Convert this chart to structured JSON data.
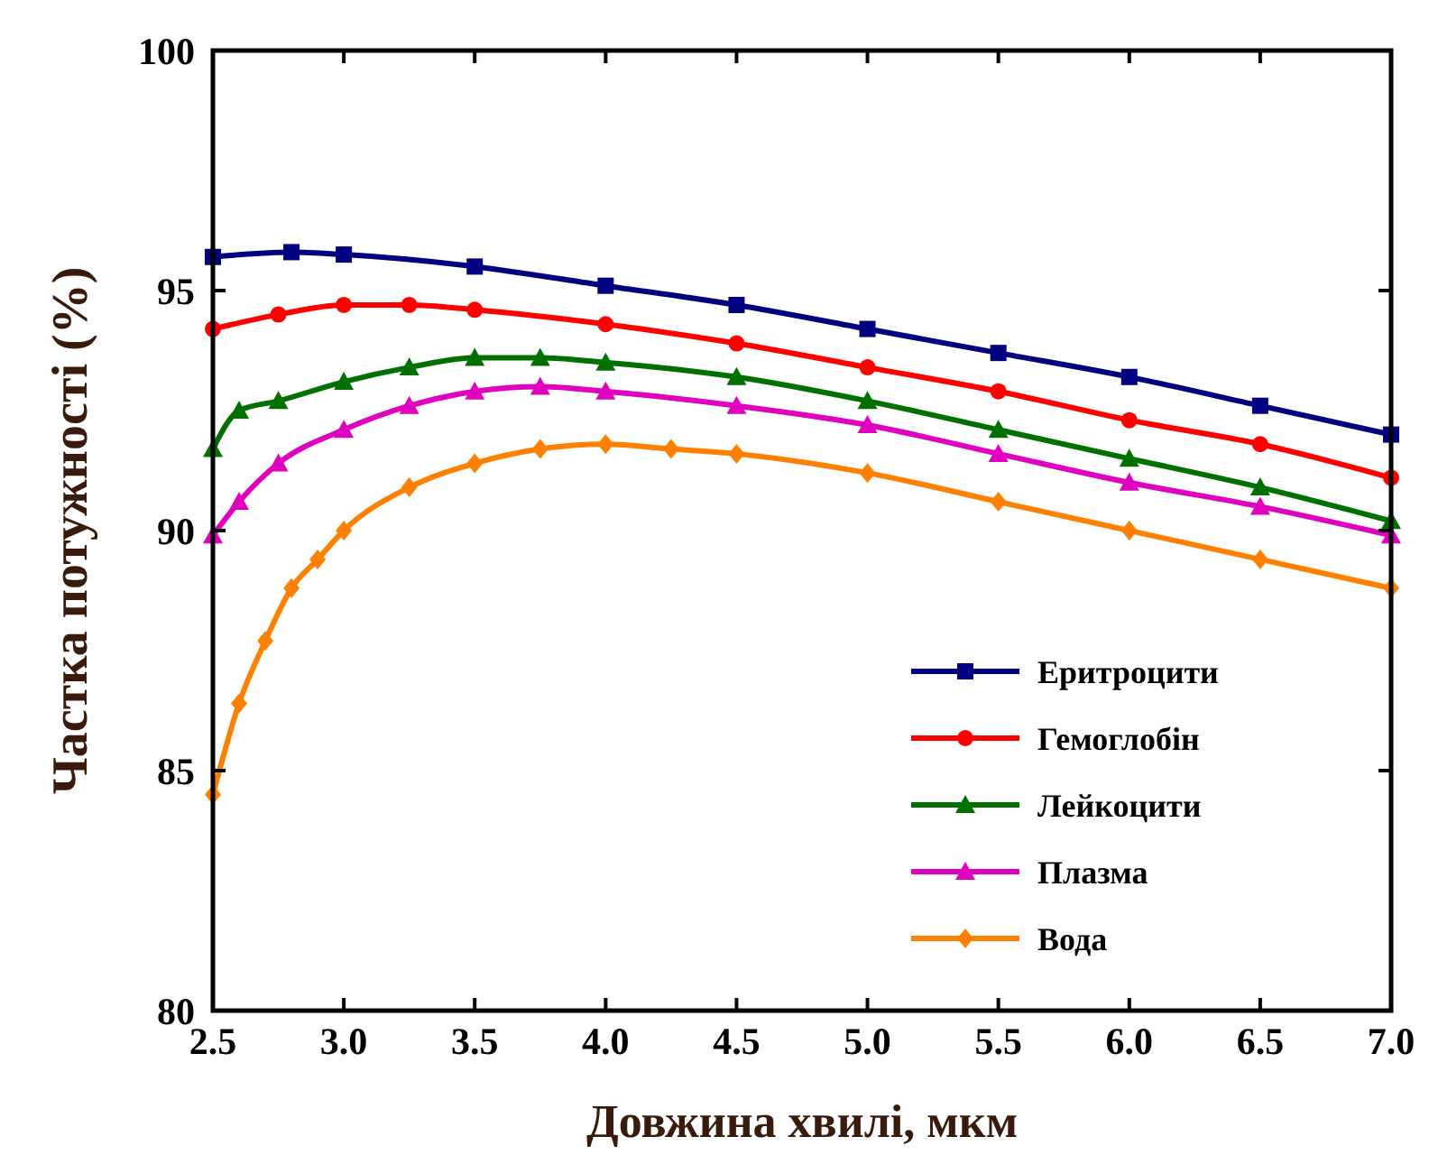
{
  "chart_data": {
    "type": "line",
    "xlabel": "Довжина хвилі, мкм",
    "ylabel": "Частка потужності  (%)",
    "xlim": [
      2.5,
      7.0
    ],
    "ylim": [
      80,
      100
    ],
    "xticks": [
      {
        "value": 2.5,
        "label": "2.5"
      },
      {
        "value": 3,
        "label": "3.0"
      },
      {
        "value": 3.5,
        "label": "3.5"
      },
      {
        "value": 4,
        "label": "4.0"
      },
      {
        "value": 4.5,
        "label": "4.5"
      },
      {
        "value": 5,
        "label": "5.0"
      },
      {
        "value": 5.5,
        "label": "5.5"
      },
      {
        "value": 6,
        "label": "6.0"
      },
      {
        "value": 6.5,
        "label": "6.5"
      },
      {
        "value": 7,
        "label": "7.0"
      }
    ],
    "yticks": [
      80,
      85,
      90,
      95,
      100
    ],
    "grid": false,
    "legend": "bottom right",
    "series": [
      {
        "name": "Еритроцити",
        "color": "#000080",
        "marker": "square",
        "x": [
          2.5,
          2.8,
          3.0,
          3.5,
          4.0,
          4.5,
          5.0,
          5.5,
          6.0,
          6.5,
          7.0
        ],
        "values": [
          95.7,
          95.8,
          95.75,
          95.5,
          95.1,
          94.7,
          94.2,
          93.7,
          93.2,
          92.6,
          92.0
        ]
      },
      {
        "name": "Гемоглобін",
        "color": "#ff0000",
        "marker": "circle",
        "x": [
          2.5,
          2.75,
          3.0,
          3.25,
          3.5,
          4.0,
          4.5,
          5.0,
          5.5,
          6.0,
          6.5,
          7.0
        ],
        "values": [
          94.2,
          94.5,
          94.7,
          94.7,
          94.6,
          94.3,
          93.9,
          93.4,
          92.9,
          92.3,
          91.8,
          91.1
        ]
      },
      {
        "name": "Лейкоцити",
        "color": "#007000",
        "marker": "triangle",
        "x": [
          2.5,
          2.6,
          2.75,
          3.0,
          3.25,
          3.5,
          3.75,
          4.0,
          4.5,
          5.0,
          5.5,
          6.0,
          6.5,
          7.0
        ],
        "values": [
          91.7,
          92.5,
          92.7,
          93.1,
          93.4,
          93.6,
          93.6,
          93.5,
          93.2,
          92.7,
          92.1,
          91.5,
          90.9,
          90.2
        ]
      },
      {
        "name": "Плазма",
        "color": "#e000c0",
        "marker": "triangle",
        "x": [
          2.5,
          2.6,
          2.75,
          3.0,
          3.25,
          3.5,
          3.75,
          4.0,
          4.5,
          5.0,
          5.5,
          6.0,
          6.5,
          7.0
        ],
        "values": [
          89.9,
          90.6,
          91.4,
          92.1,
          92.6,
          92.9,
          93.0,
          92.9,
          92.6,
          92.2,
          91.6,
          91.0,
          90.5,
          89.9
        ]
      },
      {
        "name": "Вода",
        "color": "#ff8000",
        "marker": "diamond",
        "x": [
          2.5,
          2.6,
          2.7,
          2.8,
          2.9,
          3.0,
          3.25,
          3.5,
          3.75,
          4.0,
          4.25,
          4.5,
          5.0,
          5.5,
          6.0,
          6.5,
          7.0
        ],
        "values": [
          84.5,
          86.4,
          87.7,
          88.8,
          89.4,
          90.0,
          90.9,
          91.4,
          91.7,
          91.8,
          91.7,
          91.6,
          91.2,
          90.6,
          90.0,
          89.4,
          88.8
        ]
      }
    ]
  }
}
